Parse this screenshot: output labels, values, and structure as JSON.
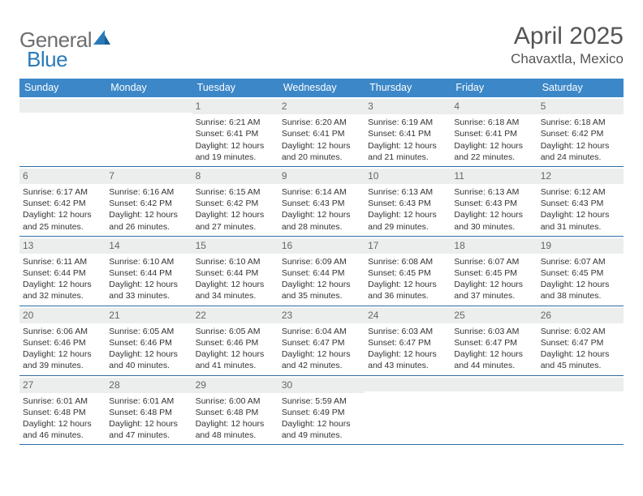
{
  "logo": {
    "general": "General",
    "blue": "Blue"
  },
  "title": "April 2025",
  "location": "Chavaxtla, Mexico",
  "colors": {
    "header_bg": "#3b87c8",
    "header_text": "#ffffff",
    "divider": "#2f6ca4",
    "daynum_bg": "#eceded",
    "daynum_text": "#666666",
    "body_text": "#333333",
    "logo_gray": "#6d6e71",
    "logo_blue": "#2a7ab9"
  },
  "day_headers": [
    "Sunday",
    "Monday",
    "Tuesday",
    "Wednesday",
    "Thursday",
    "Friday",
    "Saturday"
  ],
  "weeks": [
    [
      null,
      null,
      {
        "n": "1",
        "sr": "Sunrise: 6:21 AM",
        "ss": "Sunset: 6:41 PM",
        "d1": "Daylight: 12 hours",
        "d2": "and 19 minutes."
      },
      {
        "n": "2",
        "sr": "Sunrise: 6:20 AM",
        "ss": "Sunset: 6:41 PM",
        "d1": "Daylight: 12 hours",
        "d2": "and 20 minutes."
      },
      {
        "n": "3",
        "sr": "Sunrise: 6:19 AM",
        "ss": "Sunset: 6:41 PM",
        "d1": "Daylight: 12 hours",
        "d2": "and 21 minutes."
      },
      {
        "n": "4",
        "sr": "Sunrise: 6:18 AM",
        "ss": "Sunset: 6:41 PM",
        "d1": "Daylight: 12 hours",
        "d2": "and 22 minutes."
      },
      {
        "n": "5",
        "sr": "Sunrise: 6:18 AM",
        "ss": "Sunset: 6:42 PM",
        "d1": "Daylight: 12 hours",
        "d2": "and 24 minutes."
      }
    ],
    [
      {
        "n": "6",
        "sr": "Sunrise: 6:17 AM",
        "ss": "Sunset: 6:42 PM",
        "d1": "Daylight: 12 hours",
        "d2": "and 25 minutes."
      },
      {
        "n": "7",
        "sr": "Sunrise: 6:16 AM",
        "ss": "Sunset: 6:42 PM",
        "d1": "Daylight: 12 hours",
        "d2": "and 26 minutes."
      },
      {
        "n": "8",
        "sr": "Sunrise: 6:15 AM",
        "ss": "Sunset: 6:42 PM",
        "d1": "Daylight: 12 hours",
        "d2": "and 27 minutes."
      },
      {
        "n": "9",
        "sr": "Sunrise: 6:14 AM",
        "ss": "Sunset: 6:43 PM",
        "d1": "Daylight: 12 hours",
        "d2": "and 28 minutes."
      },
      {
        "n": "10",
        "sr": "Sunrise: 6:13 AM",
        "ss": "Sunset: 6:43 PM",
        "d1": "Daylight: 12 hours",
        "d2": "and 29 minutes."
      },
      {
        "n": "11",
        "sr": "Sunrise: 6:13 AM",
        "ss": "Sunset: 6:43 PM",
        "d1": "Daylight: 12 hours",
        "d2": "and 30 minutes."
      },
      {
        "n": "12",
        "sr": "Sunrise: 6:12 AM",
        "ss": "Sunset: 6:43 PM",
        "d1": "Daylight: 12 hours",
        "d2": "and 31 minutes."
      }
    ],
    [
      {
        "n": "13",
        "sr": "Sunrise: 6:11 AM",
        "ss": "Sunset: 6:44 PM",
        "d1": "Daylight: 12 hours",
        "d2": "and 32 minutes."
      },
      {
        "n": "14",
        "sr": "Sunrise: 6:10 AM",
        "ss": "Sunset: 6:44 PM",
        "d1": "Daylight: 12 hours",
        "d2": "and 33 minutes."
      },
      {
        "n": "15",
        "sr": "Sunrise: 6:10 AM",
        "ss": "Sunset: 6:44 PM",
        "d1": "Daylight: 12 hours",
        "d2": "and 34 minutes."
      },
      {
        "n": "16",
        "sr": "Sunrise: 6:09 AM",
        "ss": "Sunset: 6:44 PM",
        "d1": "Daylight: 12 hours",
        "d2": "and 35 minutes."
      },
      {
        "n": "17",
        "sr": "Sunrise: 6:08 AM",
        "ss": "Sunset: 6:45 PM",
        "d1": "Daylight: 12 hours",
        "d2": "and 36 minutes."
      },
      {
        "n": "18",
        "sr": "Sunrise: 6:07 AM",
        "ss": "Sunset: 6:45 PM",
        "d1": "Daylight: 12 hours",
        "d2": "and 37 minutes."
      },
      {
        "n": "19",
        "sr": "Sunrise: 6:07 AM",
        "ss": "Sunset: 6:45 PM",
        "d1": "Daylight: 12 hours",
        "d2": "and 38 minutes."
      }
    ],
    [
      {
        "n": "20",
        "sr": "Sunrise: 6:06 AM",
        "ss": "Sunset: 6:46 PM",
        "d1": "Daylight: 12 hours",
        "d2": "and 39 minutes."
      },
      {
        "n": "21",
        "sr": "Sunrise: 6:05 AM",
        "ss": "Sunset: 6:46 PM",
        "d1": "Daylight: 12 hours",
        "d2": "and 40 minutes."
      },
      {
        "n": "22",
        "sr": "Sunrise: 6:05 AM",
        "ss": "Sunset: 6:46 PM",
        "d1": "Daylight: 12 hours",
        "d2": "and 41 minutes."
      },
      {
        "n": "23",
        "sr": "Sunrise: 6:04 AM",
        "ss": "Sunset: 6:47 PM",
        "d1": "Daylight: 12 hours",
        "d2": "and 42 minutes."
      },
      {
        "n": "24",
        "sr": "Sunrise: 6:03 AM",
        "ss": "Sunset: 6:47 PM",
        "d1": "Daylight: 12 hours",
        "d2": "and 43 minutes."
      },
      {
        "n": "25",
        "sr": "Sunrise: 6:03 AM",
        "ss": "Sunset: 6:47 PM",
        "d1": "Daylight: 12 hours",
        "d2": "and 44 minutes."
      },
      {
        "n": "26",
        "sr": "Sunrise: 6:02 AM",
        "ss": "Sunset: 6:47 PM",
        "d1": "Daylight: 12 hours",
        "d2": "and 45 minutes."
      }
    ],
    [
      {
        "n": "27",
        "sr": "Sunrise: 6:01 AM",
        "ss": "Sunset: 6:48 PM",
        "d1": "Daylight: 12 hours",
        "d2": "and 46 minutes."
      },
      {
        "n": "28",
        "sr": "Sunrise: 6:01 AM",
        "ss": "Sunset: 6:48 PM",
        "d1": "Daylight: 12 hours",
        "d2": "and 47 minutes."
      },
      {
        "n": "29",
        "sr": "Sunrise: 6:00 AM",
        "ss": "Sunset: 6:48 PM",
        "d1": "Daylight: 12 hours",
        "d2": "and 48 minutes."
      },
      {
        "n": "30",
        "sr": "Sunrise: 5:59 AM",
        "ss": "Sunset: 6:49 PM",
        "d1": "Daylight: 12 hours",
        "d2": "and 49 minutes."
      },
      null,
      null,
      null
    ]
  ]
}
